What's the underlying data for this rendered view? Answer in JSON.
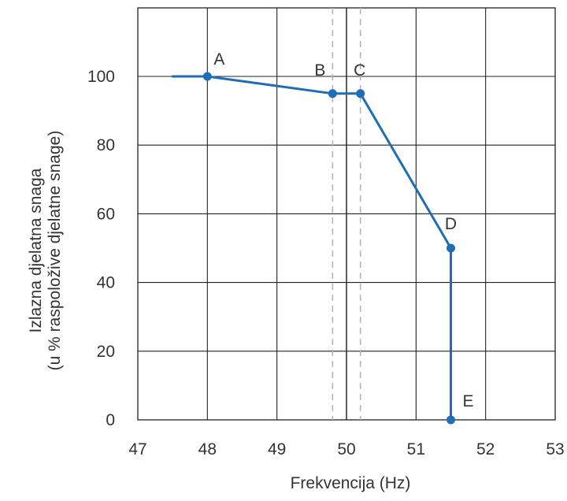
{
  "chart_data": {
    "type": "line",
    "title": "",
    "xlabel": "Frekvencija (Hz)",
    "ylabel_lines": [
      "Izlazna djelatna snaga",
      "(u % raspoložive djelatne snage)"
    ],
    "xlim": [
      47,
      53
    ],
    "ylim": [
      0,
      120
    ],
    "x_ticks": [
      "47",
      "48",
      "49",
      "50",
      "51",
      "52",
      "53"
    ],
    "y_ticks": [
      "0",
      "20",
      "40",
      "60",
      "80",
      "100"
    ],
    "grid": true,
    "reference_lines": {
      "solid_x": [
        50
      ],
      "dashed_x": [
        49.8,
        50.2
      ]
    },
    "series": [
      {
        "color": "#1f6db5",
        "x": [
          47.5,
          48,
          49.8,
          50.2,
          51.5,
          51.5
        ],
        "y": [
          100,
          100,
          95,
          95,
          50,
          0
        ]
      }
    ],
    "marked_points": [
      {
        "label": "A",
        "x": 48,
        "y": 100
      },
      {
        "label": "B",
        "x": 49.8,
        "y": 95
      },
      {
        "label": "C",
        "x": 50.2,
        "y": 95
      },
      {
        "label": "D",
        "x": 51.5,
        "y": 50
      },
      {
        "label": "E",
        "x": 51.5,
        "y": 0
      }
    ]
  }
}
